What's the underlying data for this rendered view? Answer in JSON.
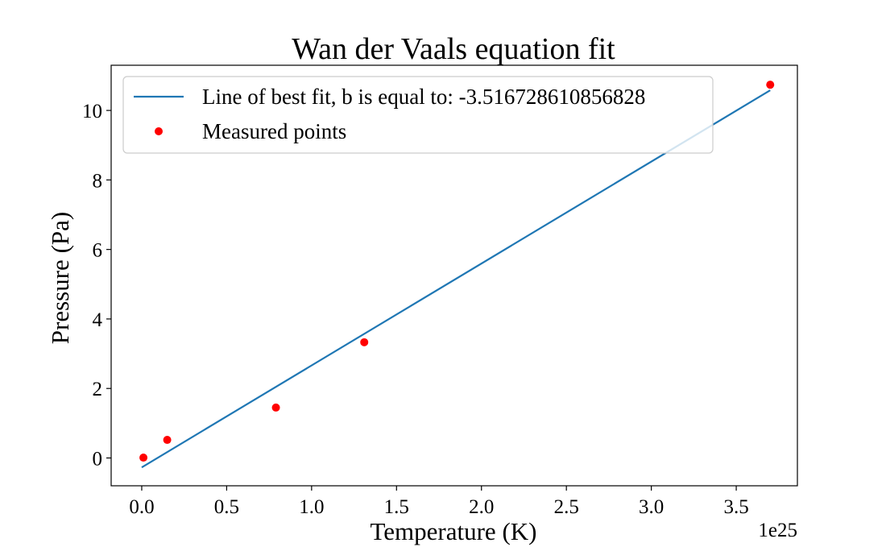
{
  "chart_data": {
    "type": "scatter",
    "title": "Wan der Vaals equation fit",
    "xlabel": "Temperature (K)",
    "ylabel": "Pressure (Pa)",
    "x_offset_label": "1e25",
    "xlim": [
      -0.18,
      3.86
    ],
    "ylim": [
      -0.8,
      11.3
    ],
    "x_ticks": [
      0.0,
      0.5,
      1.0,
      1.5,
      2.0,
      2.5,
      3.0,
      3.5
    ],
    "x_tick_labels": [
      "0.0",
      "0.5",
      "1.0",
      "1.5",
      "2.0",
      "2.5",
      "3.0",
      "3.5"
    ],
    "y_ticks": [
      0,
      2,
      4,
      6,
      8,
      10
    ],
    "y_tick_labels": [
      "0",
      "2",
      "4",
      "6",
      "8",
      "10"
    ],
    "grid": false,
    "legend_position": "top-left",
    "series": [
      {
        "name": "Line of best fit, b is equal to: -3.516728610856828",
        "kind": "line",
        "color": "#1f77b4",
        "points": [
          [
            0.0,
            -0.27
          ],
          [
            3.7,
            10.58
          ]
        ]
      },
      {
        "name": "Measured points",
        "kind": "scatter",
        "color": "#ff0000",
        "points": [
          [
            0.01,
            0.01
          ],
          [
            0.15,
            0.52
          ],
          [
            0.79,
            1.45
          ],
          [
            1.31,
            3.33
          ],
          [
            3.7,
            10.74
          ]
        ]
      }
    ]
  }
}
